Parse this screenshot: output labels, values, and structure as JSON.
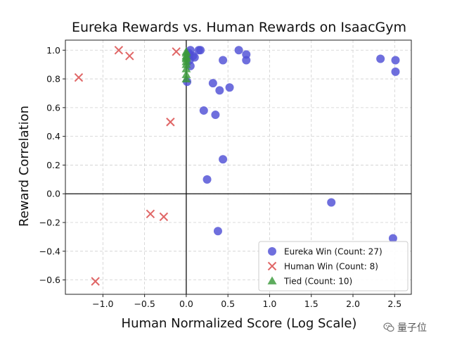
{
  "chart_data": {
    "type": "scatter",
    "title": "Eureka Rewards vs. Human Rewards on IsaacGym",
    "xlabel": "Human Normalized Score (Log Scale)",
    "ylabel": "Reward Correlation",
    "xlim": [
      -1.45,
      2.7
    ],
    "ylim": [
      -0.7,
      1.07
    ],
    "xticks": [
      -1.0,
      -0.5,
      0.0,
      0.5,
      1.0,
      1.5,
      2.0,
      2.5
    ],
    "xtick_labels": [
      "−1.0",
      "−0.5",
      "0.0",
      "0.5",
      "1.0",
      "1.5",
      "2.0",
      "2.5"
    ],
    "yticks": [
      -0.6,
      -0.4,
      -0.2,
      0.0,
      0.2,
      0.4,
      0.6,
      0.8,
      1.0
    ],
    "ytick_labels": [
      "−0.6",
      "−0.4",
      "−0.2",
      "0.0",
      "0.2",
      "0.4",
      "0.6",
      "0.8",
      "1.0"
    ],
    "grid": true,
    "legend_position": "bottom-right",
    "reference_lines": {
      "x": 0,
      "y": 0
    },
    "series": [
      {
        "name": "Eureka Win (Count: 27)",
        "marker": "circle",
        "color": "#4f4fd6",
        "points": [
          [
            0.05,
            1.0
          ],
          [
            0.04,
            0.97
          ],
          [
            0.15,
            1.0
          ],
          [
            0.17,
            1.0
          ],
          [
            0.63,
            1.0
          ],
          [
            0.72,
            0.97
          ],
          [
            0.44,
            0.93
          ],
          [
            0.72,
            0.93
          ],
          [
            0.04,
            0.93
          ],
          [
            0.05,
            0.89
          ],
          [
            2.33,
            0.94
          ],
          [
            2.51,
            0.93
          ],
          [
            2.51,
            0.85
          ],
          [
            0.01,
            0.78
          ],
          [
            0.32,
            0.77
          ],
          [
            0.52,
            0.74
          ],
          [
            0.4,
            0.72
          ],
          [
            0.21,
            0.58
          ],
          [
            0.35,
            0.55
          ],
          [
            0.44,
            0.24
          ],
          [
            0.25,
            0.1
          ],
          [
            1.74,
            -0.06
          ],
          [
            0.38,
            -0.26
          ],
          [
            2.48,
            -0.31
          ],
          [
            0.08,
            0.96
          ],
          [
            0.03,
            0.98
          ],
          [
            0.1,
            0.95
          ]
        ]
      },
      {
        "name": "Human Win (Count: 8)",
        "marker": "x",
        "color": "#e06666",
        "points": [
          [
            -0.81,
            1.0
          ],
          [
            -0.68,
            0.96
          ],
          [
            -0.12,
            0.99
          ],
          [
            -1.29,
            0.81
          ],
          [
            -0.19,
            0.5
          ],
          [
            -0.43,
            -0.14
          ],
          [
            -0.27,
            -0.16
          ],
          [
            -1.09,
            -0.61
          ]
        ]
      },
      {
        "name": "Tied (Count: 10)",
        "marker": "triangle",
        "color": "#3a9a3a",
        "points": [
          [
            0.0,
            0.98
          ],
          [
            0.0,
            0.96
          ],
          [
            0.0,
            0.94
          ],
          [
            0.0,
            0.92
          ],
          [
            0.0,
            0.9
          ],
          [
            0.0,
            0.87
          ],
          [
            0.0,
            0.83
          ],
          [
            0.0,
            0.8
          ],
          [
            0.0,
            0.99
          ],
          [
            0.0,
            0.95
          ]
        ]
      }
    ]
  },
  "watermark": {
    "text": "量子位",
    "icon": "wechat-icon"
  }
}
